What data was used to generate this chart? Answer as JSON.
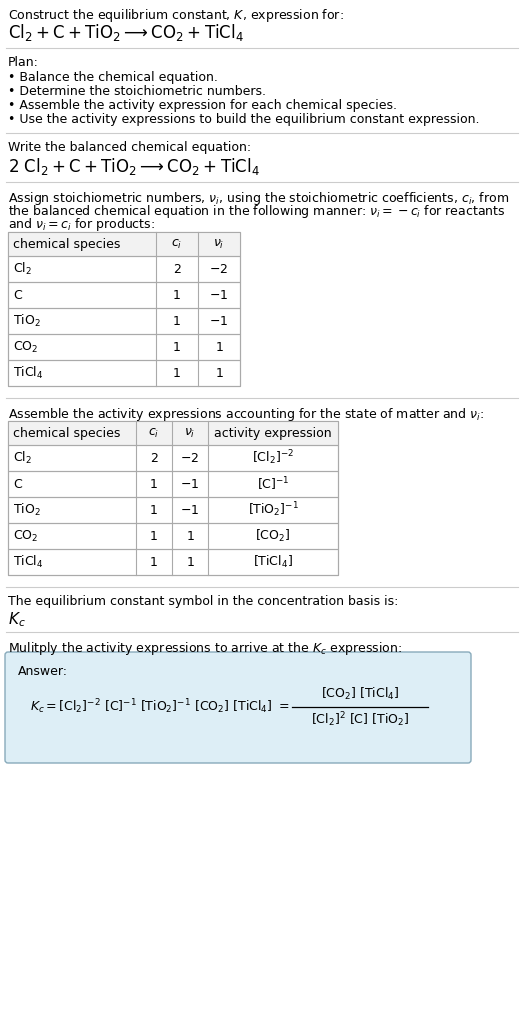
{
  "title_line1": "Construct the equilibrium constant, $K$, expression for:",
  "title_line2": "$\\mathrm{Cl_2 + C + TiO_2 \\longrightarrow CO_2 + TiCl_4}$",
  "plan_header": "Plan:",
  "plan_items": [
    "• Balance the chemical equation.",
    "• Determine the stoichiometric numbers.",
    "• Assemble the activity expression for each chemical species.",
    "• Use the activity expressions to build the equilibrium constant expression."
  ],
  "balanced_header": "Write the balanced chemical equation:",
  "balanced_eq": "$\\mathrm{2\\ Cl_2 + C + TiO_2 \\longrightarrow CO_2 + TiCl_4}$",
  "stoich_header_l1": "Assign stoichiometric numbers, $\\nu_i$, using the stoichiometric coefficients, $c_i$, from",
  "stoich_header_l2": "the balanced chemical equation in the following manner: $\\nu_i = -c_i$ for reactants",
  "stoich_header_l3": "and $\\nu_i = c_i$ for products:",
  "table1_headers": [
    "chemical species",
    "$c_i$",
    "$\\nu_i$"
  ],
  "table1_rows": [
    [
      "$\\mathrm{Cl_2}$",
      "2",
      "$-2$"
    ],
    [
      "$\\mathrm{C}$",
      "1",
      "$-1$"
    ],
    [
      "$\\mathrm{TiO_2}$",
      "1",
      "$-1$"
    ],
    [
      "$\\mathrm{CO_2}$",
      "1",
      "$1$"
    ],
    [
      "$\\mathrm{TiCl_4}$",
      "1",
      "$1$"
    ]
  ],
  "activity_header": "Assemble the activity expressions accounting for the state of matter and $\\nu_i$:",
  "table2_headers": [
    "chemical species",
    "$c_i$",
    "$\\nu_i$",
    "activity expression"
  ],
  "table2_rows": [
    [
      "$\\mathrm{Cl_2}$",
      "2",
      "$-2$",
      "$[\\mathrm{Cl_2}]^{-2}$"
    ],
    [
      "$\\mathrm{C}$",
      "1",
      "$-1$",
      "$[\\mathrm{C}]^{-1}$"
    ],
    [
      "$\\mathrm{TiO_2}$",
      "1",
      "$-1$",
      "$[\\mathrm{TiO_2}]^{-1}$"
    ],
    [
      "$\\mathrm{CO_2}$",
      "1",
      "$1$",
      "$[\\mathrm{CO_2}]$"
    ],
    [
      "$\\mathrm{TiCl_4}$",
      "1",
      "$1$",
      "$[\\mathrm{TiCl_4}]$"
    ]
  ],
  "kc_header": "The equilibrium constant symbol in the concentration basis is:",
  "kc_symbol": "$K_c$",
  "multiply_header": "Mulitply the activity expressions to arrive at the $K_c$ expression:",
  "answer_label": "Answer:",
  "bg_color": "#ffffff",
  "table_border_color": "#aaaaaa",
  "answer_box_bg": "#ddeef6",
  "answer_box_border": "#88aabb",
  "text_color": "#000000",
  "section_divider_color": "#cccccc"
}
